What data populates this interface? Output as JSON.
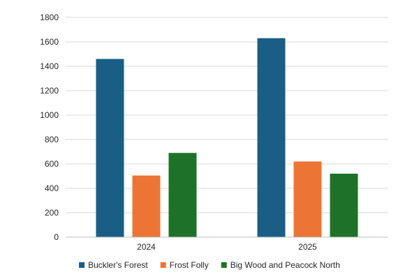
{
  "chart_data": {
    "type": "bar",
    "title": "",
    "xlabel": "",
    "ylabel": "",
    "categories": [
      "2024",
      "2025"
    ],
    "series": [
      {
        "name": "Buckler's Forest",
        "color": "#1a5e85",
        "values": [
          1460,
          1630
        ]
      },
      {
        "name": "Frost Folly",
        "color": "#ec7535",
        "values": [
          505,
          620
        ]
      },
      {
        "name": "Big Wood and Peacock North",
        "color": "#1e7228",
        "values": [
          690,
          520
        ]
      }
    ],
    "ylim": [
      0,
      1800
    ],
    "yticks": [
      0,
      200,
      400,
      600,
      800,
      1000,
      1200,
      1400,
      1600,
      1800
    ],
    "grid": true,
    "legend_position": "bottom"
  }
}
